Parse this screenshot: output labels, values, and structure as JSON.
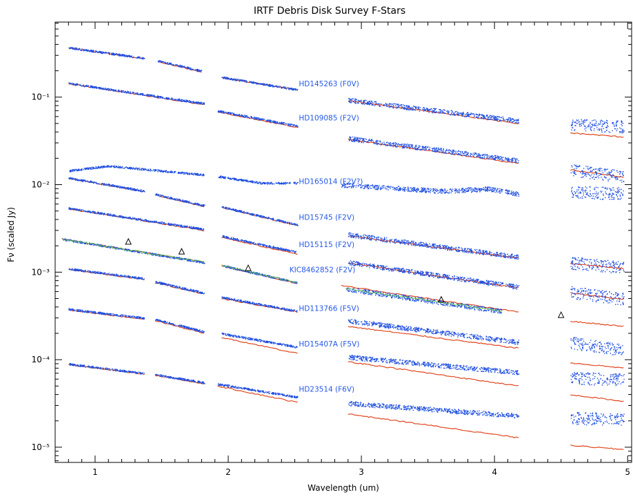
{
  "chart_data": {
    "type": "line",
    "title": "IRTF Debris Disk Survey F-Stars",
    "xlabel": "Wavelength (um)",
    "ylabel": "Fν (scaled Jy)",
    "xlim": [
      0.7,
      5.03
    ],
    "ylim": [
      6.7e-06,
      0.72
    ],
    "yscale": "log",
    "grid": false,
    "xticks": [
      {
        "value": 1,
        "label": "1"
      },
      {
        "value": 2,
        "label": "2"
      },
      {
        "value": 3,
        "label": "3"
      },
      {
        "value": 4,
        "label": "4"
      },
      {
        "value": 5,
        "label": "5"
      }
    ],
    "yticks": [
      {
        "value": 0.1,
        "label": "10⁻¹"
      },
      {
        "value": 0.01,
        "label": "10⁻²"
      },
      {
        "value": 0.001,
        "label": "10⁻³"
      },
      {
        "value": 0.0001,
        "label": "10⁻⁴"
      },
      {
        "value": 1e-05,
        "label": "10⁻⁵"
      }
    ],
    "series": [
      {
        "name": "HD145263 (F0V)",
        "label_pos": [
          2.53,
          0.14
        ],
        "segments": [
          {
            "obs": [
              [
                0.8,
                0.37
              ],
              [
                1.37,
                0.28
              ]
            ],
            "model": [
              [
                0.8,
                0.365
              ],
              [
                1.37,
                0.275
              ]
            ]
          },
          {
            "obs": [
              [
                1.47,
                0.262
              ],
              [
                1.8,
                0.2
              ]
            ],
            "model": [
              [
                1.47,
                0.255
              ],
              [
                1.8,
                0.193
              ]
            ]
          },
          {
            "obs": [
              [
                1.95,
                0.17
              ],
              [
                2.52,
                0.122
              ]
            ],
            "model": [
              [
                1.95,
                0.167
              ],
              [
                2.52,
                0.121
              ]
            ]
          },
          {
            "obs": [
              [
                2.9,
                0.093
              ],
              [
                4.18,
                0.054
              ]
            ],
            "model": [
              [
                2.9,
                0.091
              ],
              [
                4.18,
                0.05
              ]
            ]
          },
          {
            "obs": [
              [
                4.57,
                0.049
              ],
              [
                4.97,
                0.047
              ]
            ],
            "model": [
              [
                4.57,
                0.039
              ],
              [
                4.97,
                0.035
              ]
            ]
          }
        ]
      },
      {
        "name": "HD109085 (F2V)",
        "label_pos": [
          2.53,
          0.057
        ],
        "segments": [
          {
            "obs": [
              [
                0.8,
                0.145
              ],
              [
                1.82,
                0.085
              ]
            ],
            "model": [
              [
                0.8,
                0.142
              ],
              [
                1.82,
                0.082
              ]
            ]
          },
          {
            "obs": [
              [
                1.92,
                0.07
              ],
              [
                2.52,
                0.047
              ]
            ],
            "model": [
              [
                1.92,
                0.068
              ],
              [
                2.52,
                0.045
              ]
            ]
          },
          {
            "obs": [
              [
                2.9,
                0.034
              ],
              [
                4.18,
                0.019
              ]
            ],
            "model": [
              [
                2.9,
                0.033
              ],
              [
                4.18,
                0.0175
              ]
            ]
          },
          {
            "obs": [
              [
                4.57,
                0.015
              ],
              [
                4.97,
                0.0125
              ]
            ],
            "model": [
              [
                4.57,
                0.0148
              ],
              [
                4.97,
                0.0122
              ]
            ]
          }
        ]
      },
      {
        "name": "HD165014 (F2V?)",
        "label_pos": [
          2.53,
          0.0108
        ],
        "segments": [
          {
            "obs": [
              [
                0.8,
                0.0145
              ],
              [
                1.1,
                0.0165
              ],
              [
                1.82,
                0.013
              ]
            ],
            "model": []
          },
          {
            "obs": [
              [
                1.92,
                0.0125
              ],
              [
                2.25,
                0.0105
              ],
              [
                2.52,
                0.0105
              ]
            ],
            "model": []
          },
          {
            "obs": [
              [
                2.85,
                0.01
              ],
              [
                3.6,
                0.0085
              ],
              [
                3.95,
                0.009
              ],
              [
                4.18,
                0.0079
              ]
            ],
            "model": []
          },
          {
            "obs": [
              [
                4.57,
                0.0083
              ],
              [
                4.97,
                0.0081
              ]
            ],
            "model": []
          }
        ]
      },
      {
        "name": "HD15745 (F2V)",
        "label_pos": [
          2.53,
          0.0042
        ],
        "segments": [
          {
            "obs": [
              [
                0.8,
                0.012
              ],
              [
                1.37,
                0.0085
              ]
            ],
            "model": [
              [
                0.8,
                0.0118
              ],
              [
                1.37,
                0.0083
              ]
            ]
          },
          {
            "obs": [
              [
                1.45,
                0.0078
              ],
              [
                1.82,
                0.0058
              ]
            ],
            "model": [
              [
                1.45,
                0.0076
              ],
              [
                1.82,
                0.0056
              ]
            ]
          },
          {
            "obs": [
              [
                1.95,
                0.0056
              ],
              [
                2.52,
                0.0035
              ]
            ],
            "model": [
              [
                1.95,
                0.0055
              ],
              [
                2.52,
                0.0034
              ]
            ]
          }
        ]
      },
      {
        "name": "HD15115 (F2V)",
        "label_pos": [
          2.53,
          0.00205
        ],
        "segments": [
          {
            "obs": [
              [
                0.8,
                0.0054
              ],
              [
                1.82,
                0.0031
              ]
            ],
            "model": [
              [
                0.8,
                0.0053
              ],
              [
                1.82,
                0.003
              ]
            ]
          },
          {
            "obs": [
              [
                1.95,
                0.0026
              ],
              [
                2.52,
                0.0017
              ]
            ],
            "model": [
              [
                1.95,
                0.0025
              ],
              [
                2.52,
                0.0016
              ]
            ]
          },
          {
            "obs": [
              [
                2.9,
                0.0027
              ],
              [
                4.18,
                0.0015
              ]
            ],
            "model": [
              [
                2.9,
                0.0026
              ],
              [
                4.18,
                0.00145
              ]
            ]
          },
          {
            "obs": [
              [
                4.57,
                0.0013
              ],
              [
                4.97,
                0.00115
              ]
            ],
            "model": [
              [
                4.57,
                0.00125
              ],
              [
                4.97,
                0.0011
              ]
            ]
          }
        ]
      },
      {
        "name": "KIC8462852 (F2V)",
        "label_pos": [
          2.46,
          0.00105
        ],
        "segments": [
          {
            "obs": [
              [
                0.75,
                0.0024
              ],
              [
                1.82,
                0.0013
              ]
            ],
            "model": [
              [
                0.75,
                0.0024
              ],
              [
                1.82,
                0.0013
              ]
            ],
            "green": true
          },
          {
            "obs": [
              [
                1.95,
                0.0012
              ],
              [
                2.52,
                0.00076
              ]
            ],
            "model": [
              [
                1.95,
                0.00118
              ],
              [
                2.52,
                0.00074
              ]
            ],
            "green": true
          },
          {
            "obs": [
              [
                2.88,
                0.00065
              ],
              [
                4.05,
                0.00036
              ]
            ],
            "model": [
              [
                2.85,
                0.0007
              ],
              [
                4.18,
                0.00035
              ]
            ],
            "green": true
          }
        ],
        "phot": [
          [
            1.25,
            0.0022
          ],
          [
            1.65,
            0.0017
          ],
          [
            2.15,
            0.0011
          ],
          [
            3.6,
            0.00048
          ],
          [
            4.5,
            0.00032
          ]
        ]
      },
      {
        "name": "HD113766 (F5V)",
        "label_pos": [
          2.53,
          0.00038
        ],
        "segments": [
          {
            "obs": [
              [
                0.8,
                0.0011
              ],
              [
                1.37,
                0.00085
              ]
            ],
            "model": [
              [
                0.8,
                0.00108
              ],
              [
                1.37,
                0.00082
              ]
            ]
          },
          {
            "obs": [
              [
                1.45,
                0.00078
              ],
              [
                1.82,
                0.00058
              ]
            ],
            "model": [
              [
                1.45,
                0.00076
              ],
              [
                1.82,
                0.00056
              ]
            ]
          },
          {
            "obs": [
              [
                1.95,
                0.00052
              ],
              [
                2.52,
                0.00036
              ]
            ],
            "model": [
              [
                1.95,
                0.0005
              ],
              [
                2.52,
                0.00035
              ]
            ]
          },
          {
            "obs": [
              [
                2.9,
                0.0013
              ],
              [
                4.18,
                0.00068
              ]
            ],
            "model": [
              [
                2.9,
                0.00128
              ],
              [
                4.18,
                0.00066
              ]
            ]
          },
          {
            "obs": [
              [
                4.57,
                0.0006
              ],
              [
                4.97,
                0.0005
              ]
            ],
            "model": [
              [
                4.57,
                0.00058
              ],
              [
                4.97,
                0.00049
              ]
            ]
          }
        ]
      },
      {
        "name": "HD15407A (F5V)",
        "label_pos": [
          2.53,
          0.00015
        ],
        "segments": [
          {
            "obs": [
              [
                0.8,
                0.00038
              ],
              [
                1.37,
                0.0003
              ]
            ],
            "model": [
              [
                0.8,
                0.00037
              ],
              [
                1.37,
                0.00029
              ]
            ]
          },
          {
            "obs": [
              [
                1.45,
                0.00029
              ],
              [
                1.82,
                0.00021
              ]
            ],
            "model": [
              [
                1.45,
                0.00028
              ],
              [
                1.82,
                0.0002
              ]
            ]
          },
          {
            "obs": [
              [
                1.95,
                0.0002
              ],
              [
                2.52,
                0.00014
              ]
            ],
            "model": [
              [
                1.95,
                0.00018
              ],
              [
                2.52,
                0.000118
              ]
            ]
          },
          {
            "obs": [
              [
                2.9,
                0.00028
              ],
              [
                4.18,
                0.00016
              ]
            ],
            "model": [
              [
                2.9,
                0.00024
              ],
              [
                4.18,
                0.000135
              ]
            ]
          },
          {
            "obs": [
              [
                4.57,
                0.00016
              ],
              [
                4.97,
                0.00013
              ]
            ],
            "model": [
              [
                4.57,
                0.000275
              ],
              [
                4.97,
                0.00024
              ]
            ]
          }
        ]
      },
      {
        "name": "HD23514 (F6V)",
        "label_pos": [
          2.53,
          4.55e-05
        ],
        "segments": [
          {
            "obs": [
              [
                0.8,
                9e-05
              ],
              [
                1.37,
                7e-05
              ]
            ],
            "model": [
              [
                0.8,
                8.8e-05
              ],
              [
                1.37,
                6.8e-05
              ]
            ]
          },
          {
            "obs": [
              [
                1.45,
                6.8e-05
              ],
              [
                1.82,
                5.5e-05
              ]
            ],
            "model": [
              [
                1.45,
                6.6e-05
              ],
              [
                1.82,
                5.3e-05
              ]
            ]
          },
          {
            "obs": [
              [
                1.92,
                5.3e-05
              ],
              [
                2.52,
                3.75e-05
              ]
            ],
            "model": [
              [
                1.92,
                5e-05
              ],
              [
                2.52,
                3.25e-05
              ]
            ]
          },
          {
            "obs": [
              [
                2.9,
                0.000108
              ],
              [
                4.18,
                7.2e-05
              ]
            ],
            "model": [
              [
                2.9,
                9.5e-05
              ],
              [
                4.18,
                5e-05
              ]
            ]
          },
          {
            "obs": [
              [
                4.57,
                6.3e-05
              ],
              [
                4.97,
                6e-05
              ]
            ],
            "model": [
              [
                4.57,
                9.2e-05
              ],
              [
                4.97,
                8e-05
              ]
            ]
          }
        ]
      },
      {
        "name": "",
        "label_pos": null,
        "segments": [
          {
            "obs": [
              [
                2.9,
                3.2e-05
              ],
              [
                4.18,
                2.3e-05
              ]
            ],
            "model": [
              [
                2.9,
                2.4e-05
              ],
              [
                4.18,
                1.28e-05
              ]
            ]
          },
          {
            "obs": [
              [
                4.57,
                2.2e-05
              ],
              [
                4.97,
                2.1e-05
              ]
            ],
            "model": [
              [
                4.57,
                3.98e-05
              ],
              [
                4.97,
                3.35e-05
              ]
            ]
          },
          {
            "obs": [],
            "model": [
              [
                4.57,
                1.05e-05
              ],
              [
                4.97,
                9.4e-06
              ]
            ]
          }
        ]
      }
    ]
  }
}
